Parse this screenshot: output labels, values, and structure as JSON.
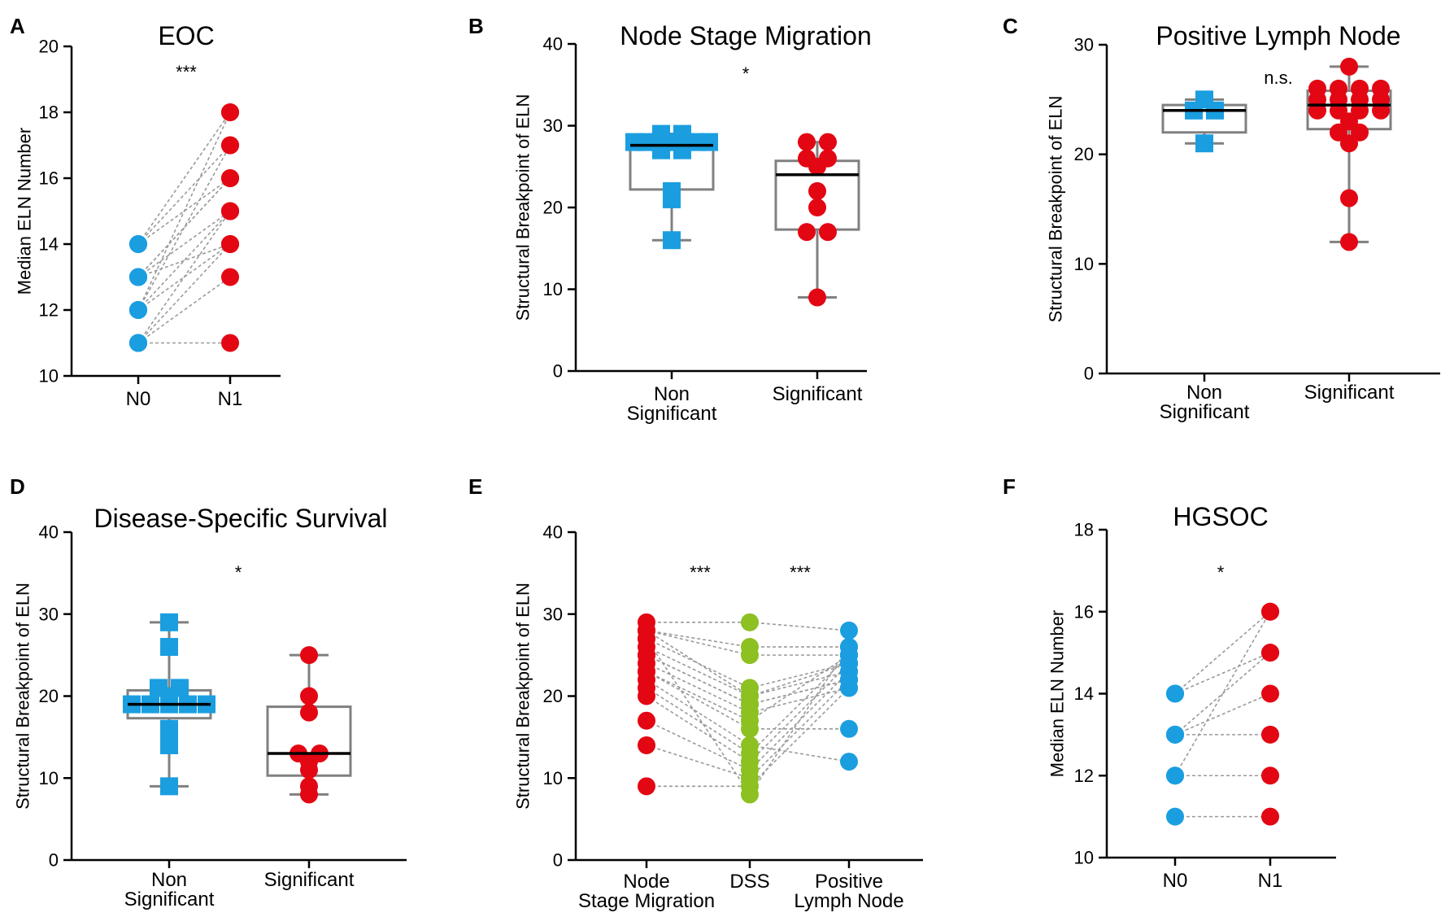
{
  "colors": {
    "blue": "#1a9ee0",
    "red": "#e30613",
    "green": "#8dc021",
    "box": "#808080",
    "median": "#000000",
    "connector": "#9a9a9a"
  },
  "chart_data": [
    {
      "letter": "A",
      "type": "scatter",
      "subtype": "paired",
      "title": "EOC",
      "ylabel": "Median ELN Number",
      "xlabel": "",
      "ylim": [
        10,
        20
      ],
      "yticks": [
        10,
        12,
        14,
        16,
        18,
        20
      ],
      "categories": [
        "N0",
        "N1"
      ],
      "significance": "***",
      "series": [
        {
          "name": "N0",
          "color": "blue",
          "shape": "circle",
          "values": [
            14,
            14,
            14,
            13,
            13,
            13,
            12,
            12,
            12,
            11,
            11,
            11,
            11,
            13,
            12
          ]
        },
        {
          "name": "N1",
          "color": "red",
          "shape": "circle",
          "values": [
            18,
            17,
            16,
            15,
            14,
            16,
            15,
            17,
            14,
            13,
            14,
            11,
            15,
            16,
            18
          ]
        }
      ]
    },
    {
      "letter": "B",
      "type": "box",
      "title": "Node Stage Migration",
      "ylabel": "Structural Breakpoint  of ELN",
      "xlabel": "",
      "ylim": [
        0,
        40
      ],
      "yticks": [
        0,
        10,
        20,
        30,
        40
      ],
      "categories": [
        "Non Significant",
        "Significant"
      ],
      "category_lines": [
        [
          "Non",
          "Significant"
        ],
        [
          "Significant"
        ]
      ],
      "significance": "*",
      "groups": [
        {
          "name": "Non Significant",
          "color": "blue",
          "shape": "square",
          "box": {
            "min": 16,
            "q1": 22.2,
            "median": 27.6,
            "q3": 27.8,
            "max": 29
          },
          "points": [
            28,
            28,
            28,
            28,
            28,
            28,
            28,
            29,
            29,
            27,
            27,
            22,
            21,
            16
          ]
        },
        {
          "name": "Significant",
          "color": "red",
          "shape": "circle",
          "box": {
            "min": 9,
            "q1": 17.3,
            "median": 24,
            "q3": 25.7,
            "max": 28
          },
          "points": [
            28,
            28,
            26,
            26,
            25,
            22,
            20,
            17,
            17,
            9
          ]
        }
      ]
    },
    {
      "letter": "C",
      "type": "box",
      "title": "Positive Lymph Node",
      "ylabel": "Structural Breakpoint  of ELN",
      "xlabel": "",
      "ylim": [
        0,
        30
      ],
      "yticks": [
        0,
        10,
        20,
        30
      ],
      "categories": [
        "Non Significant",
        "Significant"
      ],
      "category_lines": [
        [
          "Non",
          "Significant"
        ],
        [
          "Significant"
        ]
      ],
      "significance": "n.s.",
      "groups": [
        {
          "name": "Non Significant",
          "color": "blue",
          "shape": "square",
          "box": {
            "min": 21,
            "q1": 22,
            "median": 24,
            "q3": 24.5,
            "max": 25
          },
          "points": [
            25,
            24,
            24,
            21
          ]
        },
        {
          "name": "Significant",
          "color": "red",
          "shape": "circle",
          "box": {
            "min": 12,
            "q1": 22.3,
            "median": 24.5,
            "q3": 25.8,
            "max": 28
          },
          "points": [
            28,
            26,
            26,
            26,
            26,
            25,
            25,
            25,
            25,
            24,
            24,
            24,
            24,
            23,
            22,
            22,
            21,
            16,
            12
          ]
        }
      ]
    },
    {
      "letter": "D",
      "type": "box",
      "title": "Disease-Specific Survival",
      "ylabel": "Structural Breakpoint  of ELN",
      "xlabel": "",
      "ylim": [
        0,
        40
      ],
      "yticks": [
        0,
        10,
        20,
        30,
        40
      ],
      "categories": [
        "Non Significant",
        "Significant"
      ],
      "category_lines": [
        [
          "Non",
          "Significant"
        ],
        [
          "Significant"
        ]
      ],
      "significance": "*",
      "groups": [
        {
          "name": "Non Significant",
          "color": "blue",
          "shape": "square",
          "box": {
            "min": 9,
            "q1": 17.3,
            "median": 19,
            "q3": 20.7,
            "max": 29
          },
          "points": [
            29,
            26,
            21,
            21,
            20,
            19,
            19,
            19,
            19,
            19,
            16,
            14,
            9
          ]
        },
        {
          "name": "Significant",
          "color": "red",
          "shape": "circle",
          "box": {
            "min": 8,
            "q1": 10.3,
            "median": 13,
            "q3": 18.7,
            "max": 25
          },
          "points": [
            25,
            20,
            18,
            13,
            13,
            12,
            11,
            9,
            8
          ]
        }
      ]
    },
    {
      "letter": "E",
      "type": "scatter",
      "subtype": "paired",
      "title": "",
      "ylabel": "Structural Breakpoint  of ELN",
      "xlabel": "",
      "ylim": [
        0,
        40
      ],
      "yticks": [
        0,
        10,
        20,
        30,
        40
      ],
      "categories": [
        "Node Stage Migration",
        "DSS",
        "Positive Lymph Node"
      ],
      "category_lines": [
        [
          "Node",
          "Stage Migration"
        ],
        [
          "DSS"
        ],
        [
          "Positive",
          "Lymph Node"
        ]
      ],
      "significance": [
        "***",
        "***"
      ],
      "series": [
        {
          "name": "Node Stage Migration",
          "color": "red",
          "shape": "circle",
          "values": [
            29,
            28,
            28,
            27,
            26,
            25,
            24,
            23,
            22,
            21,
            20,
            17,
            14,
            9,
            27,
            28,
            25,
            23
          ]
        },
        {
          "name": "DSS",
          "color": "green",
          "shape": "circle",
          "values": [
            29,
            26,
            25,
            21,
            20,
            19,
            18,
            16,
            14,
            13,
            12,
            11,
            10,
            9,
            8,
            20,
            19,
            17
          ]
        },
        {
          "name": "Positive Lymph Node",
          "color": "blue",
          "shape": "circle",
          "values": [
            28,
            26,
            25,
            24,
            23,
            22,
            21,
            16,
            12,
            25,
            24,
            23,
            22,
            21,
            26,
            24,
            22,
            25
          ]
        }
      ]
    },
    {
      "letter": "F",
      "type": "scatter",
      "subtype": "paired",
      "title": "HGSOC",
      "ylabel": "Median ELN Number",
      "xlabel": "",
      "ylim": [
        10,
        18
      ],
      "yticks": [
        10,
        12,
        14,
        16,
        18
      ],
      "categories": [
        "N0",
        "N1"
      ],
      "significance": "*",
      "series": [
        {
          "name": "N0",
          "color": "blue",
          "shape": "circle",
          "values": [
            14,
            14,
            13,
            13,
            12,
            12,
            11,
            13
          ]
        },
        {
          "name": "N1",
          "color": "red",
          "shape": "circle",
          "values": [
            16,
            15,
            14,
            13,
            16,
            12,
            11,
            15
          ]
        }
      ]
    }
  ]
}
